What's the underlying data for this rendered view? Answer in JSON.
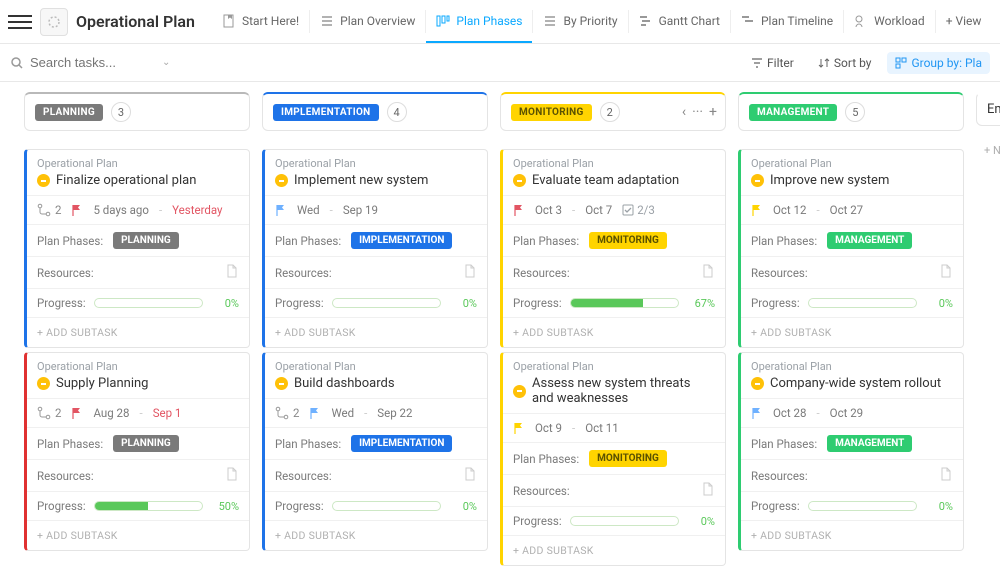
{
  "app": {
    "title": "Operational Plan"
  },
  "tabs": [
    {
      "label": "Start Here!"
    },
    {
      "label": "Plan Overview"
    },
    {
      "label": "Plan Phases",
      "active": true
    },
    {
      "label": "By Priority"
    },
    {
      "label": "Gantt Chart"
    },
    {
      "label": "Plan Timeline"
    },
    {
      "label": "Workload"
    },
    {
      "label": "+ View"
    }
  ],
  "search": {
    "placeholder": "Search tasks..."
  },
  "toolbar": {
    "filter": "Filter",
    "sort": "Sort by",
    "group": "Group by: Pla"
  },
  "columns": [
    {
      "name": "PLANNING",
      "count": "3",
      "color": "#7a7a7a",
      "top": "#b9b9b9"
    },
    {
      "name": "IMPLEMENTATION",
      "count": "4",
      "color": "#1e73e8",
      "top": "#1e73e8"
    },
    {
      "name": "MONITORING",
      "count": "2",
      "color": "#ffd400",
      "textcolor": "#5b5200",
      "top": "#ffd400",
      "actions": true
    },
    {
      "name": "MANAGEMENT",
      "count": "5",
      "color": "#2ecc71",
      "top": "#2ecc71"
    },
    {
      "name": "Em",
      "plain": true
    }
  ],
  "labels": {
    "crumb": "Operational Plan",
    "phases": "Plan Phases:",
    "resources": "Resources:",
    "progress": "Progress:",
    "addsub": "+ ADD SUBTASK",
    "newtask": "+ N"
  },
  "cards": {
    "c0": [
      {
        "title": "Finalize operational plan",
        "left": "#1e73e8",
        "sub": "2",
        "flag": "#e25563",
        "date1": "5 days ago",
        "sep": "-",
        "date2": "Yesterday",
        "overdue": true,
        "phase": "PLANNING",
        "phaseColor": "#7a7a7a",
        "prog": 0,
        "pct": "0%"
      },
      {
        "title": "Supply Planning",
        "left": "#e03131",
        "sub": "2",
        "flag": "#e25563",
        "date1": "Aug 28",
        "sep": "-",
        "date2": "Sep 1",
        "overdue": true,
        "phase": "PLANNING",
        "phaseColor": "#7a7a7a",
        "prog": 50,
        "pct": "50%"
      }
    ],
    "c1": [
      {
        "title": "Implement new system",
        "left": "#1e73e8",
        "flag": "#6fb1ff",
        "date1": "Wed",
        "sep": "-",
        "date2": "Sep 19",
        "phase": "IMPLEMENTATION",
        "phaseColor": "#1e73e8",
        "prog": 0,
        "pct": "0%"
      },
      {
        "title": "Build dashboards",
        "left": "#1e73e8",
        "sub": "2",
        "flag": "#6fb1ff",
        "date1": "Wed",
        "sep": "-",
        "date2": "Sep 22",
        "phase": "IMPLEMENTATION",
        "phaseColor": "#1e73e8",
        "prog": 0,
        "pct": "0%"
      }
    ],
    "c2": [
      {
        "title": "Evaluate team adaptation",
        "left": "#ffd400",
        "flag": "#e25563",
        "date1": "Oct 3",
        "sep": "-",
        "date2": "Oct 7",
        "check": "2/3",
        "phase": "MONITORING",
        "phaseColor": "#ffd400",
        "phaseText": "#5b5200",
        "prog": 67,
        "pct": "67%"
      },
      {
        "title": "Assess new system threats and weaknesses",
        "left": "#ffd400",
        "flag": "#ffd400",
        "date1": "Oct 9",
        "sep": "-",
        "date2": "Oct 11",
        "phase": "MONITORING",
        "phaseColor": "#ffd400",
        "phaseText": "#5b5200",
        "prog": 0,
        "pct": "0%"
      }
    ],
    "c3": [
      {
        "title": "Improve new system",
        "left": "#2ecc71",
        "flag": "#ffd400",
        "date1": "Oct 12",
        "sep": "-",
        "date2": "Oct 27",
        "phase": "MANAGEMENT",
        "phaseColor": "#2ecc71",
        "prog": 0,
        "pct": "0%"
      },
      {
        "title": "Company-wide system rollout",
        "left": "#2ecc71",
        "flag": "#6fb1ff",
        "date1": "Oct 28",
        "sep": "-",
        "date2": "Oct 29",
        "phase": "MANAGEMENT",
        "phaseColor": "#2ecc71",
        "prog": 0,
        "pct": "0%"
      }
    ]
  }
}
